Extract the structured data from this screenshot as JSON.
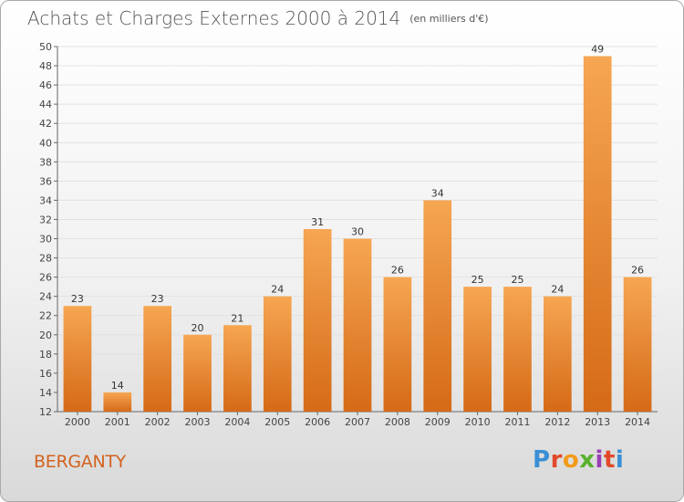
{
  "header": {
    "title": "Achats et Charges Externes 2000 à 2014",
    "unit": "(en milliers d'€)"
  },
  "footer": {
    "commune": "BERGANTY",
    "logo": "Proxiti"
  },
  "colors": {
    "bar_light": "#f6a652",
    "bar_dark": "#d56a17",
    "grid": "#e2e2e2"
  },
  "chart_data": {
    "type": "bar",
    "categories": [
      "2000",
      "2001",
      "2002",
      "2003",
      "2004",
      "2005",
      "2006",
      "2007",
      "2008",
      "2009",
      "2010",
      "2011",
      "2012",
      "2013",
      "2014"
    ],
    "values": [
      23,
      14,
      23,
      20,
      21,
      24,
      31,
      30,
      26,
      34,
      25,
      25,
      24,
      49,
      26
    ],
    "ylim": [
      12,
      50
    ],
    "yticks": [
      12,
      14,
      16,
      18,
      20,
      22,
      24,
      26,
      28,
      30,
      32,
      34,
      36,
      38,
      40,
      42,
      44,
      46,
      48,
      50
    ],
    "grid": true,
    "legend": "none"
  }
}
